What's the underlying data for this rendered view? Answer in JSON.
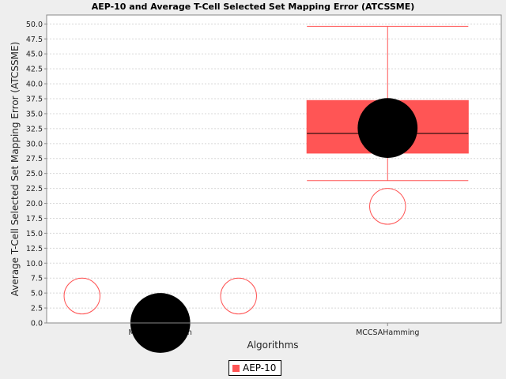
{
  "chart_data": {
    "type": "box",
    "title": "AEP-10 and Average T-Cell Selected Set Mapping Error (ATCSSME)",
    "xlabel": "Algorithms",
    "ylabel": "Average T-Cell Selected Set Mapping Error (ATCSSME)",
    "ylim": [
      0,
      51.5
    ],
    "yticks": [
      0.0,
      2.5,
      5.0,
      7.5,
      10.0,
      12.5,
      15.0,
      17.5,
      20.0,
      22.5,
      25.0,
      27.5,
      30.0,
      32.5,
      35.0,
      37.5,
      40.0,
      42.5,
      45.0,
      47.5,
      50.0
    ],
    "ytick_labels": [
      "0.0",
      "2.5",
      "5.0",
      "7.5",
      "10.0",
      "12.5",
      "15.0",
      "17.5",
      "20.0",
      "22.5",
      "25.0",
      "27.5",
      "30.0",
      "32.5",
      "35.0",
      "37.5",
      "40.0",
      "42.5",
      "45.0",
      "47.5",
      "50.0"
    ],
    "grid": true,
    "legend_position": "bottom-center",
    "categories": [
      "MCCSAEuclidean",
      "MCCSAHamming"
    ],
    "series": [
      {
        "name": "AEP-10",
        "color": "#ff5555",
        "mean_color": "#000000",
        "boxes": [
          {
            "category": "MCCSAEuclidean",
            "whisker_low": 0.0,
            "q1": 0.0,
            "median": 0.0,
            "q3": 0.0,
            "whisker_high": 0.0,
            "mean": 0.0,
            "outliers": [
              4.5,
              4.5
            ]
          },
          {
            "category": "MCCSAHamming",
            "whisker_low": 23.8,
            "q1": 28.4,
            "median": 31.7,
            "q3": 37.2,
            "whisker_high": 49.6,
            "mean": 32.6,
            "outliers": [
              19.5
            ]
          }
        ]
      }
    ]
  }
}
